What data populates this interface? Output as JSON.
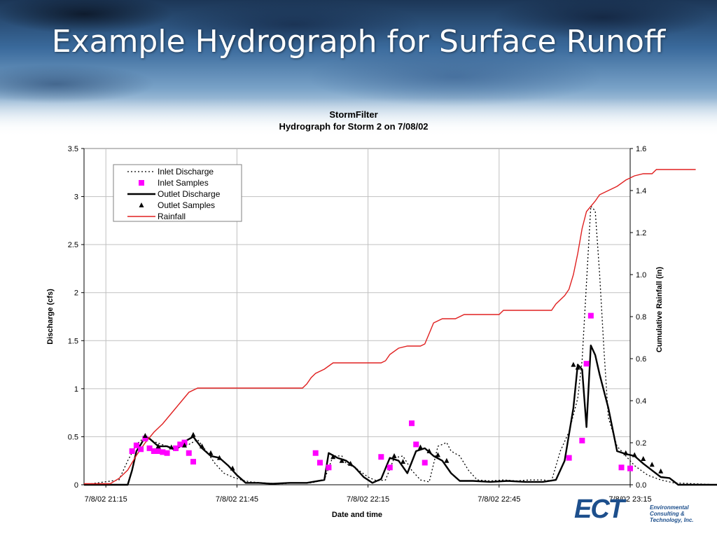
{
  "slide": {
    "title": "Example Hydrograph for Surface Runoff"
  },
  "logo": {
    "mark": "ECT",
    "text": "Environmental Consulting & Technology, Inc."
  },
  "colors": {
    "rainfall": "#e02020",
    "inlet_samples": "#ff00ff",
    "discharge": "#000000"
  },
  "chart_data": {
    "type": "line",
    "title": "StormFilter",
    "subtitle": "Hydrograph for Storm 2 on 7/08/02",
    "xlabel": "Date and time",
    "ylabel": "Discharge (cfs)",
    "y2label": "Cumulative Rainfall (in)",
    "xlim_minutes": [
      -5,
      120
    ],
    "x_ticks": [
      "7/8/02 21:15",
      "7/8/02 21:45",
      "7/8/02 22:15",
      "7/8/02 22:45",
      "7/8/02 23:15"
    ],
    "x_tick_minutes": [
      0,
      30,
      60,
      90,
      120
    ],
    "ylim": [
      0,
      3.5
    ],
    "y_ticks": [
      "0",
      "0.5",
      "1",
      "1.5",
      "2",
      "2.5",
      "3",
      "3.5"
    ],
    "y2lim": [
      0,
      1.6
    ],
    "y2_ticks": [
      "0.0",
      "0.2",
      "0.4",
      "0.6",
      "0.8",
      "1.0",
      "1.2",
      "1.4",
      "1.6"
    ],
    "grid": true,
    "legend_position": "top-left",
    "series": [
      {
        "name": "Inlet Discharge",
        "style": "dotted",
        "axis": "left",
        "points": [
          [
            -5,
            0
          ],
          [
            3,
            0.05
          ],
          [
            5,
            0.25
          ],
          [
            7,
            0.42
          ],
          [
            9,
            0.5
          ],
          [
            11,
            0.45
          ],
          [
            14,
            0.4
          ],
          [
            16,
            0.38
          ],
          [
            19,
            0.42
          ],
          [
            21,
            0.47
          ],
          [
            23,
            0.35
          ],
          [
            25,
            0.22
          ],
          [
            27,
            0.12
          ],
          [
            29,
            0.08
          ],
          [
            31,
            0.05
          ],
          [
            33,
            0.03
          ],
          [
            36,
            0.02
          ],
          [
            40,
            0.01
          ],
          [
            44,
            0.02
          ],
          [
            47,
            0.02
          ],
          [
            50,
            0.05
          ],
          [
            52,
            0.3
          ],
          [
            54,
            0.3
          ],
          [
            55,
            0.22
          ],
          [
            57,
            0.18
          ],
          [
            60,
            0.08
          ],
          [
            62,
            0.04
          ],
          [
            64,
            0.05
          ],
          [
            66,
            0.28
          ],
          [
            68,
            0.3
          ],
          [
            70,
            0.15
          ],
          [
            72,
            0.05
          ],
          [
            74,
            0.03
          ],
          [
            76,
            0.4
          ],
          [
            78,
            0.44
          ],
          [
            79,
            0.35
          ],
          [
            81,
            0.3
          ],
          [
            83,
            0.15
          ],
          [
            85,
            0.05
          ],
          [
            88,
            0.04
          ],
          [
            91,
            0.05
          ],
          [
            94,
            0.04
          ],
          [
            97,
            0.05
          ],
          [
            100,
            0.05
          ],
          [
            102,
            0.04
          ],
          [
            104,
            0.35
          ],
          [
            106,
            0.55
          ],
          [
            108,
            0.9
          ],
          [
            109,
            1.3
          ],
          [
            110,
            2.1
          ],
          [
            111,
            2.9
          ],
          [
            112,
            2.85
          ],
          [
            113,
            2.2
          ],
          [
            114,
            1.4
          ],
          [
            115,
            0.7
          ],
          [
            117,
            0.4
          ],
          [
            119,
            0.3
          ],
          [
            121,
            0.2
          ],
          [
            124,
            0.1
          ],
          [
            127,
            0.05
          ],
          [
            130,
            0.02
          ],
          [
            140,
            0
          ]
        ]
      },
      {
        "name": "Inlet Samples",
        "style": "square-markers",
        "axis": "left",
        "points": [
          [
            6,
            0.35
          ],
          [
            7,
            0.41
          ],
          [
            8,
            0.37
          ],
          [
            9,
            0.48
          ],
          [
            10,
            0.38
          ],
          [
            11,
            0.35
          ],
          [
            12,
            0.35
          ],
          [
            13,
            0.34
          ],
          [
            14,
            0.33
          ],
          [
            16,
            0.38
          ],
          [
            17,
            0.42
          ],
          [
            18,
            0.44
          ],
          [
            19,
            0.33
          ],
          [
            20,
            0.24
          ],
          [
            48,
            0.33
          ],
          [
            49,
            0.23
          ],
          [
            51,
            0.18
          ],
          [
            63,
            0.29
          ],
          [
            65,
            0.18
          ],
          [
            70,
            0.64
          ],
          [
            71,
            0.42
          ],
          [
            73,
            0.23
          ],
          [
            106,
            0.28
          ],
          [
            109,
            0.46
          ],
          [
            110,
            1.26
          ],
          [
            111,
            1.76
          ],
          [
            118,
            0.18
          ],
          [
            120,
            0.17
          ]
        ]
      },
      {
        "name": "Outlet Discharge",
        "style": "solid",
        "axis": "left",
        "points": [
          [
            -5,
            0
          ],
          [
            5,
            0
          ],
          [
            6,
            0.15
          ],
          [
            7,
            0.35
          ],
          [
            8,
            0.42
          ],
          [
            9,
            0.5
          ],
          [
            10,
            0.48
          ],
          [
            12,
            0.4
          ],
          [
            14,
            0.4
          ],
          [
            16,
            0.36
          ],
          [
            18,
            0.45
          ],
          [
            20,
            0.5
          ],
          [
            22,
            0.38
          ],
          [
            24,
            0.3
          ],
          [
            26,
            0.28
          ],
          [
            28,
            0.2
          ],
          [
            30,
            0.1
          ],
          [
            32,
            0.02
          ],
          [
            35,
            0.02
          ],
          [
            38,
            0.01
          ],
          [
            42,
            0.02
          ],
          [
            46,
            0.02
          ],
          [
            50,
            0.05
          ],
          [
            51,
            0.33
          ],
          [
            53,
            0.28
          ],
          [
            55,
            0.25
          ],
          [
            57,
            0.18
          ],
          [
            59,
            0.08
          ],
          [
            61,
            0.02
          ],
          [
            63,
            0.06
          ],
          [
            65,
            0.28
          ],
          [
            67,
            0.25
          ],
          [
            69,
            0.12
          ],
          [
            71,
            0.35
          ],
          [
            73,
            0.38
          ],
          [
            75,
            0.3
          ],
          [
            77,
            0.25
          ],
          [
            79,
            0.12
          ],
          [
            81,
            0.04
          ],
          [
            84,
            0.04
          ],
          [
            88,
            0.03
          ],
          [
            92,
            0.04
          ],
          [
            96,
            0.03
          ],
          [
            100,
            0.03
          ],
          [
            103,
            0.05
          ],
          [
            105,
            0.25
          ],
          [
            107,
            0.8
          ],
          [
            108,
            1.25
          ],
          [
            109,
            1.2
          ],
          [
            110,
            0.6
          ],
          [
            111,
            1.45
          ],
          [
            112,
            1.35
          ],
          [
            113,
            1.15
          ],
          [
            115,
            0.8
          ],
          [
            117,
            0.35
          ],
          [
            119,
            0.32
          ],
          [
            121,
            0.3
          ],
          [
            123,
            0.22
          ],
          [
            125,
            0.15
          ],
          [
            127,
            0.08
          ],
          [
            129,
            0.07
          ],
          [
            131,
            0
          ],
          [
            140,
            0
          ]
        ]
      },
      {
        "name": "Outlet Samples",
        "style": "triangle-markers",
        "axis": "left",
        "points": [
          [
            9,
            0.51
          ],
          [
            12,
            0.4
          ],
          [
            15,
            0.39
          ],
          [
            18,
            0.41
          ],
          [
            20,
            0.52
          ],
          [
            22,
            0.4
          ],
          [
            24,
            0.33
          ],
          [
            26,
            0.28
          ],
          [
            29,
            0.17
          ],
          [
            52,
            0.29
          ],
          [
            54,
            0.25
          ],
          [
            56,
            0.22
          ],
          [
            66,
            0.3
          ],
          [
            68,
            0.24
          ],
          [
            72,
            0.39
          ],
          [
            74,
            0.35
          ],
          [
            76,
            0.31
          ],
          [
            78,
            0.25
          ],
          [
            107,
            1.25
          ],
          [
            108,
            1.22
          ],
          [
            119,
            0.33
          ],
          [
            121,
            0.31
          ],
          [
            123,
            0.27
          ],
          [
            125,
            0.21
          ],
          [
            127,
            0.14
          ]
        ]
      },
      {
        "name": "Rainfall",
        "style": "solid-red",
        "axis": "right",
        "points": [
          [
            -5,
            0.005
          ],
          [
            1,
            0.005
          ],
          [
            3,
            0.03
          ],
          [
            5,
            0.07
          ],
          [
            7,
            0.14
          ],
          [
            9,
            0.2
          ],
          [
            11,
            0.25
          ],
          [
            13,
            0.29
          ],
          [
            15,
            0.34
          ],
          [
            17,
            0.39
          ],
          [
            19,
            0.44
          ],
          [
            21,
            0.46
          ],
          [
            25,
            0.46
          ],
          [
            30,
            0.46
          ],
          [
            35,
            0.46
          ],
          [
            40,
            0.46
          ],
          [
            45,
            0.46
          ],
          [
            46,
            0.48
          ],
          [
            47,
            0.51
          ],
          [
            48,
            0.53
          ],
          [
            50,
            0.55
          ],
          [
            52,
            0.58
          ],
          [
            55,
            0.58
          ],
          [
            60,
            0.58
          ],
          [
            63,
            0.58
          ],
          [
            64,
            0.59
          ],
          [
            65,
            0.62
          ],
          [
            67,
            0.65
          ],
          [
            69,
            0.66
          ],
          [
            72,
            0.66
          ],
          [
            73,
            0.67
          ],
          [
            74,
            0.72
          ],
          [
            75,
            0.77
          ],
          [
            77,
            0.79
          ],
          [
            80,
            0.79
          ],
          [
            82,
            0.81
          ],
          [
            90,
            0.81
          ],
          [
            91,
            0.83
          ],
          [
            100,
            0.83
          ],
          [
            102,
            0.83
          ],
          [
            103,
            0.86
          ],
          [
            105,
            0.9
          ],
          [
            106,
            0.93
          ],
          [
            107,
            1.0
          ],
          [
            108,
            1.1
          ],
          [
            109,
            1.22
          ],
          [
            110,
            1.3
          ],
          [
            112,
            1.35
          ],
          [
            113,
            1.38
          ],
          [
            115,
            1.4
          ],
          [
            117,
            1.42
          ],
          [
            119,
            1.45
          ],
          [
            121,
            1.47
          ],
          [
            123,
            1.48
          ],
          [
            125,
            1.48
          ],
          [
            126,
            1.5
          ],
          [
            130,
            1.5
          ],
          [
            135,
            1.5
          ]
        ]
      }
    ]
  }
}
